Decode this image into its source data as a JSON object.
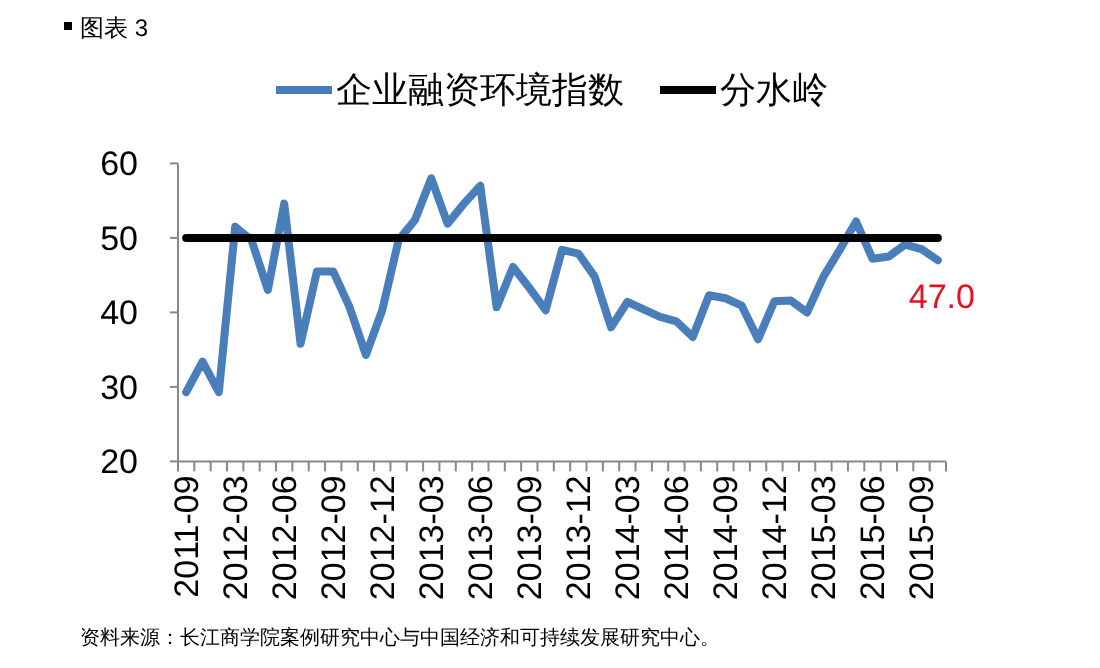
{
  "chart_data": {
    "type": "line",
    "title": "图表 3",
    "categories": [
      "2011-09",
      null,
      null,
      "2012-03",
      null,
      null,
      "2012-06",
      null,
      null,
      "2012-09",
      null,
      null,
      "2012-12",
      null,
      null,
      "2013-03",
      null,
      null,
      "2013-06",
      null,
      null,
      "2013-09",
      null,
      null,
      "2013-12",
      null,
      null,
      "2014-03",
      null,
      null,
      "2014-06",
      null,
      null,
      "2014-09",
      null,
      null,
      "2014-12",
      null,
      null,
      "2015-03",
      null,
      null,
      "2015-06",
      null,
      null,
      "2015-09",
      null
    ],
    "series": [
      {
        "name": "企业融资环境指数",
        "color": "#4a7ebb",
        "values": [
          29.3,
          33.4,
          29.3,
          51.5,
          49.7,
          43.0,
          54.6,
          35.8,
          45.5,
          45.5,
          40.7,
          34.3,
          40.3,
          49.7,
          52.4,
          58.0,
          51.9,
          54.6,
          57.0,
          40.7,
          46.1,
          43.3,
          40.3,
          48.4,
          47.9,
          44.8,
          38.0,
          41.4,
          40.4,
          39.4,
          38.8,
          36.7,
          42.3,
          41.9,
          40.9,
          36.4,
          41.5,
          41.6,
          40.0,
          44.8,
          48.4,
          52.2,
          47.2,
          47.5,
          49.1,
          48.5,
          47.0
        ],
        "value_labels": [
          null,
          null,
          null,
          null,
          null,
          null,
          null,
          null,
          null,
          null,
          null,
          null,
          null,
          null,
          null,
          null,
          null,
          null,
          null,
          null,
          null,
          null,
          null,
          null,
          null,
          null,
          null,
          null,
          null,
          null,
          null,
          null,
          null,
          null,
          null,
          null,
          null,
          null,
          null,
          null,
          null,
          null,
          null,
          null,
          null,
          null,
          "47.0"
        ]
      },
      {
        "name": "分水岭",
        "color": "#000000",
        "values": [
          50,
          50,
          50,
          50,
          50,
          50,
          50,
          50,
          50,
          50,
          50,
          50,
          50,
          50,
          50,
          50,
          50,
          50,
          50,
          50,
          50,
          50,
          50,
          50,
          50,
          50,
          50,
          50,
          50,
          50,
          50,
          50,
          50,
          50,
          50,
          50,
          50,
          50,
          50,
          50,
          50,
          50,
          50,
          50,
          50,
          50,
          50
        ]
      }
    ],
    "ylim": [
      20,
      60
    ],
    "yticks": [
      20,
      30,
      40,
      50,
      60
    ],
    "legend": "top",
    "grid": false,
    "marker": "none",
    "annotations": [
      "资料来源：长江商学院案例研究中心与中国经济和可持续发展研究中心。"
    ]
  }
}
